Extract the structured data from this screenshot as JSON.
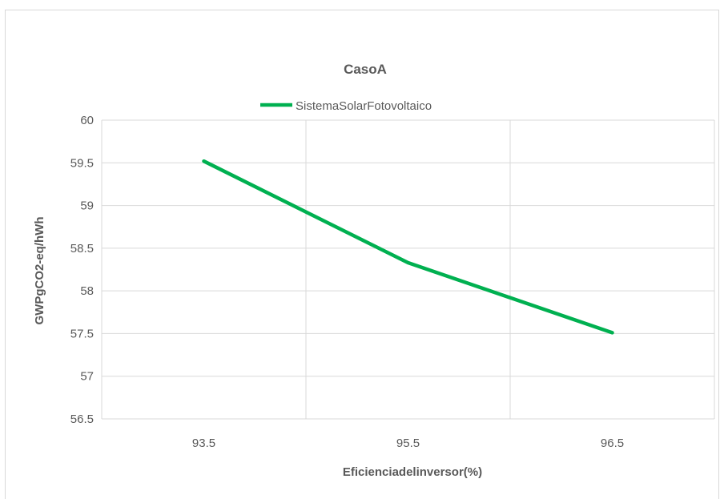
{
  "chart_data": {
    "type": "line",
    "title": "Caso\u001fA",
    "xlabel": "Eficiencia\u001fdel\u001finversor\u001f(%)",
    "ylabel": "GWP\u001f\u001fgCO2-eq/hWh",
    "categories": [
      "93.5",
      "95.5",
      "96.5"
    ],
    "series": [
      {
        "name": "Sistema\u001fSolar\u001fFotovoltaico",
        "values": [
          59.52,
          58.33,
          57.51
        ]
      }
    ],
    "ylim": [
      56.5,
      60
    ],
    "yticks": [
      "60",
      "59.5",
      "59",
      "58.5",
      "58",
      "57.5",
      "57",
      "56.5"
    ],
    "grid": true,
    "legend_position": "top",
    "colors": {
      "series": "#00b050",
      "grid": "#d9d9d9",
      "text": "#595959"
    }
  }
}
